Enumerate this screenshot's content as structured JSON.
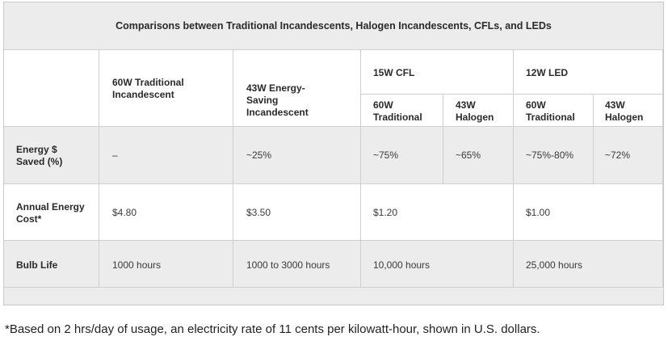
{
  "table": {
    "title": "Comparisons between Traditional Incandescents, Halogen Incandescents, CFLs, and LEDs",
    "columns": {
      "incandescent": "60W Traditional Incandescent",
      "energy_saving": "43W Energy-Saving Incandescent",
      "cfl": "15W CFL",
      "led": "12W LED",
      "sub_traditional": "60W Traditional",
      "sub_halogen": "43W Halogen"
    },
    "rows": {
      "energy_saved": {
        "label": "Energy $ Saved (%)",
        "incandescent": "–",
        "energy_saving": "~25%",
        "cfl_traditional": "~75%",
        "cfl_halogen": "~65%",
        "led_traditional": "~75%-80%",
        "led_halogen": "~72%"
      },
      "annual_cost": {
        "label": "Annual Energy Cost*",
        "incandescent": "$4.80",
        "energy_saving": "$3.50",
        "cfl": "$1.20",
        "led": "$1.00"
      },
      "bulb_life": {
        "label": "Bulb Life",
        "incandescent": "1000 hours",
        "energy_saving": "1000 to 3000 hours",
        "cfl": "10,000 hours",
        "led": "25,000 hours"
      }
    }
  },
  "footnote": "*Based on 2 hrs/day of usage, an electricity rate of 11 cents per kilowatt-hour, shown in U.S. dollars.",
  "colors": {
    "header_bg": "#ececec",
    "body_bg": "#ffffff",
    "border": "#cfcfcf"
  }
}
